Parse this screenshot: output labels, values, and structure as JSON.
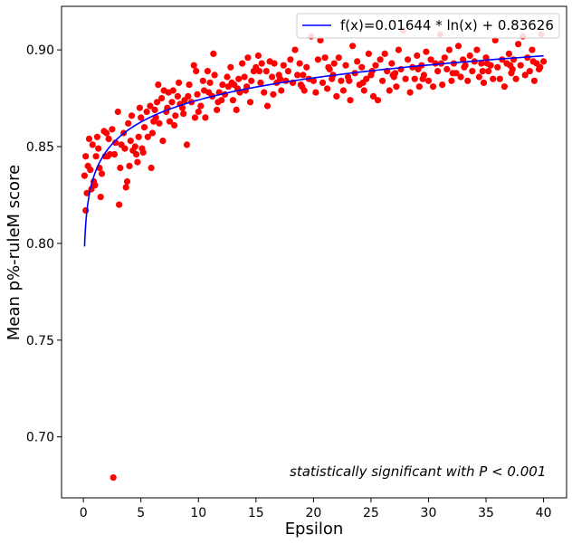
{
  "chart_data": {
    "type": "scatter",
    "title": "",
    "xlabel": "Epsilon",
    "ylabel": "Mean p%-ruleM score",
    "xlim": [
      -1.9,
      42.0
    ],
    "ylim": [
      0.6685,
      0.9225
    ],
    "xticks": [
      0,
      5,
      10,
      15,
      20,
      25,
      30,
      35,
      40
    ],
    "yticks": [
      0.7,
      0.75,
      0.8,
      0.85,
      0.9
    ],
    "xtick_labels": [
      "0",
      "5",
      "10",
      "15",
      "20",
      "25",
      "30",
      "35",
      "40"
    ],
    "ytick_labels": [
      "0.70",
      "0.75",
      "0.80",
      "0.85",
      "0.90"
    ],
    "grid": false,
    "legend_position": "top-right",
    "colors": {
      "points": "#ff0000",
      "fit": "#0000ff"
    },
    "fit": {
      "name": "f(x)=0.01644 * ln(x) + 0.83626",
      "a": 0.01644,
      "b": 0.83626,
      "x_start": 0.1,
      "x_end": 40
    },
    "annotation": "statistically significant with P < 0.001",
    "points": [
      [
        0.1,
        0.835
      ],
      [
        0.2,
        0.817
      ],
      [
        0.2,
        0.845
      ],
      [
        0.3,
        0.826
      ],
      [
        0.4,
        0.84
      ],
      [
        0.5,
        0.854
      ],
      [
        0.6,
        0.838
      ],
      [
        0.7,
        0.828
      ],
      [
        0.8,
        0.851
      ],
      [
        0.9,
        0.832
      ],
      [
        1.0,
        0.83
      ],
      [
        1.1,
        0.845
      ],
      [
        1.2,
        0.855
      ],
      [
        1.3,
        0.849
      ],
      [
        1.4,
        0.839
      ],
      [
        1.5,
        0.824
      ],
      [
        1.6,
        0.836
      ],
      [
        1.8,
        0.858
      ],
      [
        1.9,
        0.845
      ],
      [
        2.0,
        0.857
      ],
      [
        2.1,
        0.845
      ],
      [
        2.2,
        0.854
      ],
      [
        2.3,
        0.846
      ],
      [
        2.5,
        0.859
      ],
      [
        2.6,
        0.679
      ],
      [
        2.7,
        0.846
      ],
      [
        2.8,
        0.852
      ],
      [
        3.0,
        0.868
      ],
      [
        3.1,
        0.82
      ],
      [
        3.2,
        0.839
      ],
      [
        3.3,
        0.851
      ],
      [
        3.5,
        0.857
      ],
      [
        3.6,
        0.849
      ],
      [
        3.7,
        0.829
      ],
      [
        3.8,
        0.832
      ],
      [
        3.9,
        0.862
      ],
      [
        4.0,
        0.84
      ],
      [
        4.1,
        0.853
      ],
      [
        4.2,
        0.866
      ],
      [
        4.3,
        0.848
      ],
      [
        4.5,
        0.85
      ],
      [
        4.6,
        0.846
      ],
      [
        4.7,
        0.842
      ],
      [
        4.8,
        0.855
      ],
      [
        4.9,
        0.87
      ],
      [
        5.0,
        0.865
      ],
      [
        5.1,
        0.849
      ],
      [
        5.2,
        0.847
      ],
      [
        5.3,
        0.86
      ],
      [
        5.5,
        0.868
      ],
      [
        5.6,
        0.855
      ],
      [
        5.8,
        0.871
      ],
      [
        5.9,
        0.839
      ],
      [
        6.0,
        0.857
      ],
      [
        6.1,
        0.863
      ],
      [
        6.2,
        0.869
      ],
      [
        6.4,
        0.873
      ],
      [
        6.5,
        0.882
      ],
      [
        6.6,
        0.862
      ],
      [
        6.8,
        0.875
      ],
      [
        6.9,
        0.853
      ],
      [
        7.0,
        0.879
      ],
      [
        7.2,
        0.868
      ],
      [
        7.3,
        0.87
      ],
      [
        7.4,
        0.878
      ],
      [
        7.5,
        0.863
      ],
      [
        7.7,
        0.873
      ],
      [
        7.8,
        0.879
      ],
      [
        7.9,
        0.861
      ],
      [
        8.0,
        0.866
      ],
      [
        8.2,
        0.876
      ],
      [
        8.3,
        0.883
      ],
      [
        8.4,
        0.872
      ],
      [
        8.6,
        0.87
      ],
      [
        8.8,
        0.874
      ],
      [
        9.0,
        0.851
      ],
      [
        9.1,
        0.876
      ],
      [
        9.2,
        0.882
      ],
      [
        9.4,
        0.873
      ],
      [
        9.6,
        0.892
      ],
      [
        9.7,
        0.865
      ],
      [
        9.8,
        0.889
      ],
      [
        9.9,
        0.877
      ],
      [
        10.0,
        0.868
      ],
      [
        10.2,
        0.871
      ],
      [
        10.4,
        0.884
      ],
      [
        10.5,
        0.879
      ],
      [
        10.6,
        0.865
      ],
      [
        10.8,
        0.889
      ],
      [
        11.0,
        0.883
      ],
      [
        11.2,
        0.876
      ],
      [
        11.3,
        0.898
      ],
      [
        11.4,
        0.887
      ],
      [
        11.6,
        0.869
      ],
      [
        11.8,
        0.878
      ],
      [
        12.0,
        0.874
      ],
      [
        12.1,
        0.882
      ],
      [
        12.3,
        0.877
      ],
      [
        12.5,
        0.886
      ],
      [
        12.6,
        0.881
      ],
      [
        12.8,
        0.891
      ],
      [
        13.0,
        0.874
      ],
      [
        13.1,
        0.882
      ],
      [
        13.3,
        0.869
      ],
      [
        13.5,
        0.885
      ],
      [
        13.6,
        0.878
      ],
      [
        13.8,
        0.893
      ],
      [
        14.0,
        0.886
      ],
      [
        14.1,
        0.879
      ],
      [
        14.3,
        0.896
      ],
      [
        14.5,
        0.873
      ],
      [
        14.6,
        0.884
      ],
      [
        14.8,
        0.889
      ],
      [
        15.0,
        0.891
      ],
      [
        15.2,
        0.897
      ],
      [
        15.4,
        0.883
      ],
      [
        15.5,
        0.893
      ],
      [
        15.7,
        0.878
      ],
      [
        15.9,
        0.889
      ],
      [
        16.0,
        0.871
      ],
      [
        16.2,
        0.894
      ],
      [
        16.4,
        0.886
      ],
      [
        16.6,
        0.893
      ],
      [
        16.8,
        0.883
      ],
      [
        17.0,
        0.887
      ],
      [
        17.2,
        0.879
      ],
      [
        17.4,
        0.892
      ],
      [
        17.6,
        0.884
      ],
      [
        17.8,
        0.889
      ],
      [
        18.0,
        0.895
      ],
      [
        18.2,
        0.883
      ],
      [
        18.4,
        0.9
      ],
      [
        18.6,
        0.887
      ],
      [
        18.8,
        0.893
      ],
      [
        19.0,
        0.881
      ],
      [
        19.2,
        0.879
      ],
      [
        19.4,
        0.891
      ],
      [
        19.6,
        0.885
      ],
      [
        19.8,
        0.907
      ],
      [
        20.0,
        0.884
      ],
      [
        20.2,
        0.878
      ],
      [
        20.4,
        0.895
      ],
      [
        20.6,
        0.905
      ],
      [
        20.8,
        0.883
      ],
      [
        21.0,
        0.896
      ],
      [
        21.2,
        0.88
      ],
      [
        21.4,
        0.89
      ],
      [
        21.6,
        0.885
      ],
      [
        21.8,
        0.893
      ],
      [
        22.0,
        0.876
      ],
      [
        22.2,
        0.896
      ],
      [
        22.4,
        0.884
      ],
      [
        22.6,
        0.879
      ],
      [
        22.8,
        0.892
      ],
      [
        23.0,
        0.886
      ],
      [
        23.2,
        0.874
      ],
      [
        23.4,
        0.902
      ],
      [
        23.6,
        0.888
      ],
      [
        23.8,
        0.894
      ],
      [
        24.0,
        0.882
      ],
      [
        24.2,
        0.891
      ],
      [
        24.4,
        0.879
      ],
      [
        24.6,
        0.885
      ],
      [
        24.8,
        0.898
      ],
      [
        25.0,
        0.887
      ],
      [
        25.2,
        0.876
      ],
      [
        25.4,
        0.892
      ],
      [
        25.6,
        0.874
      ],
      [
        25.8,
        0.895
      ],
      [
        26.0,
        0.884
      ],
      [
        26.2,
        0.898
      ],
      [
        26.4,
        0.889
      ],
      [
        26.6,
        0.879
      ],
      [
        26.8,
        0.893
      ],
      [
        27.0,
        0.886
      ],
      [
        27.2,
        0.881
      ],
      [
        27.4,
        0.9
      ],
      [
        27.6,
        0.89
      ],
      [
        27.8,
        0.91
      ],
      [
        28.0,
        0.885
      ],
      [
        28.2,
        0.895
      ],
      [
        28.4,
        0.878
      ],
      [
        28.6,
        0.891
      ],
      [
        28.8,
        0.885
      ],
      [
        29.0,
        0.897
      ],
      [
        29.2,
        0.881
      ],
      [
        29.4,
        0.892
      ],
      [
        29.6,
        0.887
      ],
      [
        29.8,
        0.899
      ],
      [
        30.0,
        0.884
      ],
      [
        30.2,
        0.895
      ],
      [
        30.4,
        0.881
      ],
      [
        30.6,
        0.893
      ],
      [
        30.8,
        0.889
      ],
      [
        31.0,
        0.908
      ],
      [
        31.2,
        0.882
      ],
      [
        31.4,
        0.896
      ],
      [
        31.6,
        0.89
      ],
      [
        31.8,
        0.9
      ],
      [
        32.0,
        0.884
      ],
      [
        32.2,
        0.893
      ],
      [
        32.4,
        0.888
      ],
      [
        32.6,
        0.902
      ],
      [
        32.8,
        0.886
      ],
      [
        33.0,
        0.895
      ],
      [
        33.2,
        0.892
      ],
      [
        33.4,
        0.884
      ],
      [
        33.6,
        0.897
      ],
      [
        33.8,
        0.889
      ],
      [
        34.0,
        0.894
      ],
      [
        34.2,
        0.9
      ],
      [
        34.4,
        0.886
      ],
      [
        34.6,
        0.893
      ],
      [
        34.8,
        0.883
      ],
      [
        35.0,
        0.896
      ],
      [
        35.2,
        0.889
      ],
      [
        35.4,
        0.892
      ],
      [
        35.6,
        0.885
      ],
      [
        35.8,
        0.905
      ],
      [
        36.0,
        0.891
      ],
      [
        36.2,
        0.885
      ],
      [
        36.4,
        0.895
      ],
      [
        36.6,
        0.881
      ],
      [
        36.8,
        0.893
      ],
      [
        37.0,
        0.898
      ],
      [
        37.2,
        0.888
      ],
      [
        37.4,
        0.895
      ],
      [
        37.6,
        0.885
      ],
      [
        37.8,
        0.903
      ],
      [
        38.0,
        0.892
      ],
      [
        38.2,
        0.907
      ],
      [
        38.4,
        0.887
      ],
      [
        38.6,
        0.896
      ],
      [
        38.8,
        0.889
      ],
      [
        39.0,
        0.9
      ],
      [
        39.2,
        0.884
      ],
      [
        39.4,
        0.893
      ],
      [
        39.6,
        0.89
      ],
      [
        39.8,
        0.908
      ],
      [
        40.0,
        0.894
      ],
      [
        10.9,
        0.878
      ],
      [
        12.9,
        0.883
      ],
      [
        15.3,
        0.889
      ],
      [
        17.1,
        0.885
      ],
      [
        19.1,
        0.887
      ],
      [
        21.3,
        0.891
      ],
      [
        23.1,
        0.884
      ],
      [
        25.1,
        0.889
      ],
      [
        27.1,
        0.888
      ],
      [
        29.1,
        0.89
      ],
      [
        31.1,
        0.893
      ],
      [
        33.1,
        0.891
      ],
      [
        35.1,
        0.893
      ],
      [
        37.1,
        0.892
      ],
      [
        39.1,
        0.894
      ],
      [
        11.7,
        0.873
      ],
      [
        14.2,
        0.881
      ],
      [
        16.5,
        0.877
      ],
      [
        18.9,
        0.882
      ],
      [
        21.7,
        0.887
      ],
      [
        24.3,
        0.883
      ],
      [
        26.9,
        0.887
      ],
      [
        29.5,
        0.885
      ],
      [
        32.1,
        0.888
      ],
      [
        34.7,
        0.889
      ],
      [
        37.3,
        0.89
      ],
      [
        39.7,
        0.891
      ],
      [
        6.3,
        0.865
      ],
      [
        8.7,
        0.867
      ],
      [
        13.4,
        0.88
      ]
    ]
  }
}
